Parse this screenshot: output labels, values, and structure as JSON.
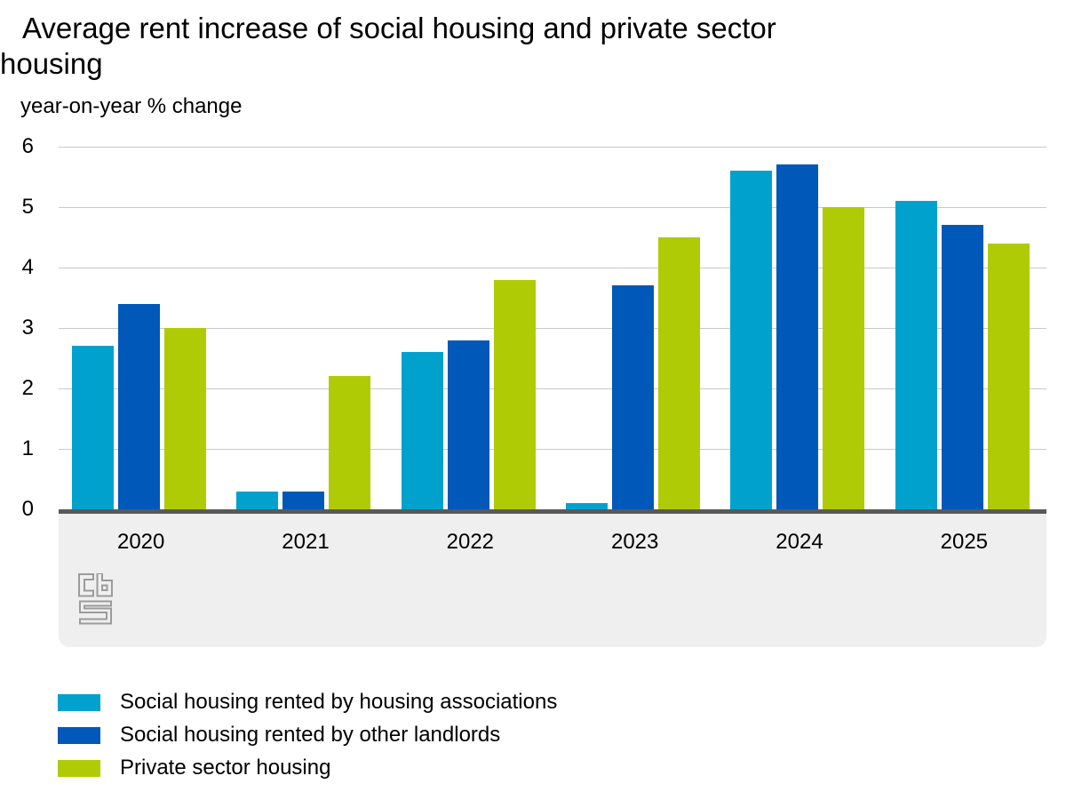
{
  "chart_data": {
    "type": "bar",
    "title": "Average rent increase of social housing and private sector housing",
    "subtitle": "year-on-year % change",
    "xlabel": "",
    "ylabel": "year-on-year % change",
    "categories": [
      "2020",
      "2021",
      "2022",
      "2023",
      "2024",
      "2025"
    ],
    "series": [
      {
        "name": "Social housing rented by housing associations",
        "color": "#00a1cd",
        "values": [
          2.7,
          0.3,
          2.6,
          0.1,
          5.6,
          5.1
        ]
      },
      {
        "name": "Social housing rented by other landlords",
        "color": "#0058b8",
        "values": [
          3.4,
          0.3,
          2.8,
          3.7,
          5.7,
          4.7
        ]
      },
      {
        "name": "Private sector housing",
        "color": "#afcb05",
        "values": [
          3.0,
          2.2,
          3.8,
          4.5,
          5.0,
          4.4
        ]
      }
    ],
    "ylim": [
      0,
      6
    ],
    "yticks": [
      0,
      1,
      2,
      3,
      4,
      5,
      6
    ],
    "grid": true,
    "legend_position": "bottom-left"
  },
  "branding": {
    "logo_name": "cbs-logo"
  },
  "colors": {
    "series1": "#00a1cd",
    "series2": "#0058b8",
    "series3": "#afcb05",
    "gridline": "#c9c9c9",
    "axis_line": "#595959",
    "axis_panel": "#efefef",
    "logo_gray": "#9b9b9b",
    "background": "#ffffff",
    "text": "#000000"
  }
}
